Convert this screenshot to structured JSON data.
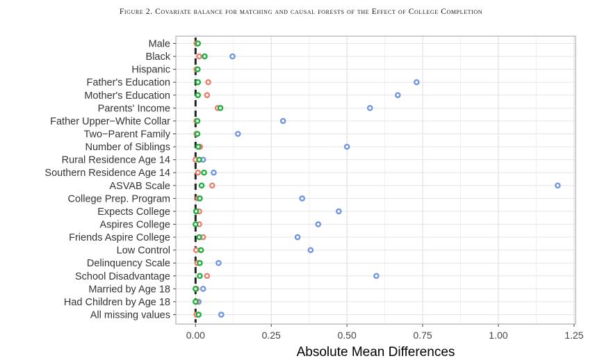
{
  "figure_title": "Figure 2. Covariate balance for matching and causal forests of the Effect of College Completion",
  "chart_data": {
    "type": "scatter",
    "title": "Figure 2. Covariate balance for matching and causal forests of the Effect of College Completion",
    "xlabel": "Absolute Mean Differences",
    "ylabel": "",
    "xlim": [
      -0.065,
      1.255
    ],
    "xticks": [
      0.0,
      0.25,
      0.5,
      0.75,
      1.0,
      1.25
    ],
    "xtick_labels": [
      "0.00",
      "0.25",
      "0.50",
      "0.75",
      "1.00",
      "1.25"
    ],
    "grid": true,
    "reference_line": {
      "x": 0,
      "style": "dashed",
      "color": "#222222"
    },
    "categories": [
      "Male",
      "Black",
      "Hispanic",
      "Father's Education",
      "Mother's Education",
      "Parents' Income",
      "Father Upper−White Collar",
      "Two−Parent Family",
      "Number of Siblings",
      "Rural Residence Age 14",
      "Southern Residence Age 14",
      "ASVAB Scale",
      "College Prep. Program",
      "Expects College",
      "Aspires College",
      "Friends Aspire College",
      "Low Control",
      "Delinquency Scale",
      "School Disadvantage",
      "Married by Age 18",
      "Had Children by Age 18",
      "All missing values"
    ],
    "series": [
      {
        "color": "#6F95E3",
        "values": [
          0.005,
          0.122,
          0.005,
          0.73,
          0.668,
          0.576,
          0.289,
          0.14,
          0.5,
          0.025,
          0.06,
          1.196,
          0.352,
          0.473,
          0.405,
          0.337,
          0.38,
          0.076,
          0.597,
          0.025,
          0.01,
          0.085
        ]
      },
      {
        "color": "#EC7D6F",
        "values": [
          0.003,
          0.012,
          0.003,
          0.042,
          0.038,
          0.073,
          0.003,
          0.003,
          0.015,
          0.0,
          0.008,
          0.055,
          0.008,
          0.012,
          0.012,
          0.025,
          0.002,
          0.006,
          0.038,
          0.003,
          0.003,
          0.003
        ]
      },
      {
        "color": "#1FAE3C",
        "values": [
          0.008,
          0.03,
          0.007,
          0.008,
          0.008,
          0.082,
          0.006,
          0.006,
          0.009,
          0.012,
          0.028,
          0.02,
          0.014,
          0.002,
          0.0,
          0.012,
          0.018,
          0.014,
          0.014,
          0.0,
          0.0,
          0.01
        ]
      }
    ]
  }
}
